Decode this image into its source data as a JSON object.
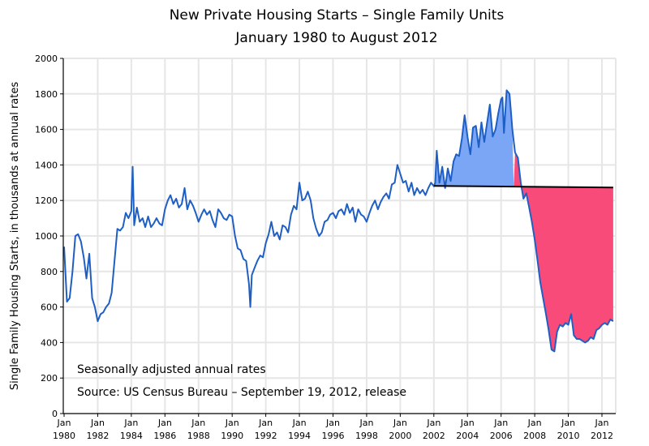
{
  "chart_data": {
    "type": "line",
    "title": "New Private Housing Starts – Single Family Units",
    "subtitle": "January 1980 to August 2012",
    "xlabel": "",
    "ylabel": "Single Family Housing Starts, in thousands at annual rates",
    "xlim": [
      1980.0,
      2012.67
    ],
    "ylim": [
      0,
      2000
    ],
    "grid": true,
    "y_ticks": [
      "0",
      "200",
      "400",
      "600",
      "800",
      "1000",
      "1200",
      "1400",
      "1600",
      "1800",
      "2000"
    ],
    "x_ticks": [
      {
        "top": "Jan",
        "bottom": "1980",
        "year": 1980
      },
      {
        "top": "Jan",
        "bottom": "1982",
        "year": 1982
      },
      {
        "top": "Jan",
        "bottom": "1984",
        "year": 1984
      },
      {
        "top": "Jan",
        "bottom": "1986",
        "year": 1986
      },
      {
        "top": "Jan",
        "bottom": "1988",
        "year": 1988
      },
      {
        "top": "Jan",
        "bottom": "1990",
        "year": 1990
      },
      {
        "top": "Jan",
        "bottom": "1992",
        "year": 1992
      },
      {
        "top": "Jan",
        "bottom": "1994",
        "year": 1994
      },
      {
        "top": "Jan",
        "bottom": "1996",
        "year": 1996
      },
      {
        "top": "Jan",
        "bottom": "1998",
        "year": 1998
      },
      {
        "top": "Jan",
        "bottom": "2000",
        "year": 2000
      },
      {
        "top": "Jan",
        "bottom": "2002",
        "year": 2002
      },
      {
        "top": "Jan",
        "bottom": "2004",
        "year": 2004
      },
      {
        "top": "Jan",
        "bottom": "2006",
        "year": 2006
      },
      {
        "top": "Jan",
        "bottom": "2008",
        "year": 2008
      },
      {
        "top": "Jan",
        "bottom": "2010",
        "year": 2010
      },
      {
        "top": "Jan",
        "bottom": "2012",
        "year": 2012
      }
    ],
    "series": [
      {
        "name": "Single Family Housing Starts",
        "color": "#1f5fc4",
        "x": [
          1980.0,
          1980.17,
          1980.33,
          1980.5,
          1980.67,
          1980.83,
          1981.0,
          1981.17,
          1981.33,
          1981.5,
          1981.67,
          1981.83,
          1982.0,
          1982.17,
          1982.33,
          1982.5,
          1982.67,
          1982.83,
          1983.0,
          1983.17,
          1983.33,
          1983.5,
          1983.67,
          1983.83,
          1984.0,
          1984.08,
          1984.17,
          1984.33,
          1984.5,
          1984.67,
          1984.83,
          1985.0,
          1985.17,
          1985.33,
          1985.5,
          1985.67,
          1985.83,
          1986.0,
          1986.17,
          1986.33,
          1986.5,
          1986.67,
          1986.83,
          1987.0,
          1987.17,
          1987.33,
          1987.5,
          1987.67,
          1987.83,
          1988.0,
          1988.17,
          1988.33,
          1988.5,
          1988.67,
          1988.83,
          1989.0,
          1989.17,
          1989.33,
          1989.5,
          1989.67,
          1989.83,
          1990.0,
          1990.17,
          1990.33,
          1990.5,
          1990.67,
          1990.83,
          1991.0,
          1991.08,
          1991.17,
          1991.33,
          1991.5,
          1991.67,
          1991.83,
          1992.0,
          1992.17,
          1992.33,
          1992.5,
          1992.67,
          1992.83,
          1993.0,
          1993.17,
          1993.33,
          1993.5,
          1993.67,
          1993.83,
          1994.0,
          1994.17,
          1994.33,
          1994.5,
          1994.67,
          1994.83,
          1995.0,
          1995.17,
          1995.33,
          1995.5,
          1995.67,
          1995.83,
          1996.0,
          1996.17,
          1996.33,
          1996.5,
          1996.67,
          1996.83,
          1997.0,
          1997.17,
          1997.33,
          1997.5,
          1997.67,
          1997.83,
          1998.0,
          1998.17,
          1998.33,
          1998.5,
          1998.67,
          1998.83,
          1999.0,
          1999.17,
          1999.33,
          1999.5,
          1999.67,
          1999.83,
          2000.0,
          2000.17,
          2000.33,
          2000.5,
          2000.67,
          2000.83,
          2001.0,
          2001.17,
          2001.33,
          2001.5,
          2001.67,
          2001.83,
          2002.0,
          2002.08,
          2002.17,
          2002.33,
          2002.5,
          2002.67,
          2002.83,
          2003.0,
          2003.17,
          2003.33,
          2003.5,
          2003.67,
          2003.83,
          2004.0,
          2004.17,
          2004.33,
          2004.5,
          2004.67,
          2004.83,
          2005.0,
          2005.17,
          2005.33,
          2005.5,
          2005.67,
          2005.83,
          2006.0,
          2006.08,
          2006.17,
          2006.33,
          2006.5,
          2006.67,
          2006.83,
          2007.0,
          2007.17,
          2007.33,
          2007.5,
          2007.67,
          2007.83,
          2008.0,
          2008.17,
          2008.33,
          2008.5,
          2008.67,
          2008.83,
          2009.0,
          2009.17,
          2009.33,
          2009.5,
          2009.67,
          2009.83,
          2010.0,
          2010.17,
          2010.33,
          2010.5,
          2010.67,
          2010.83,
          2011.0,
          2011.17,
          2011.33,
          2011.5,
          2011.67,
          2011.83,
          2012.0,
          2012.17,
          2012.33,
          2012.5,
          2012.67
        ],
        "y": [
          940,
          630,
          650,
          800,
          1000,
          1010,
          970,
          880,
          760,
          900,
          650,
          600,
          520,
          560,
          570,
          600,
          620,
          680,
          860,
          1040,
          1030,
          1050,
          1130,
          1100,
          1140,
          1390,
          1060,
          1160,
          1080,
          1100,
          1050,
          1110,
          1050,
          1070,
          1100,
          1070,
          1060,
          1150,
          1200,
          1230,
          1180,
          1210,
          1160,
          1180,
          1270,
          1150,
          1200,
          1170,
          1130,
          1080,
          1120,
          1150,
          1120,
          1140,
          1090,
          1050,
          1150,
          1130,
          1100,
          1090,
          1120,
          1110,
          1000,
          930,
          920,
          870,
          860,
          730,
          600,
          780,
          820,
          860,
          890,
          880,
          960,
          1010,
          1080,
          1000,
          1020,
          980,
          1060,
          1050,
          1020,
          1120,
          1170,
          1150,
          1300,
          1200,
          1210,
          1250,
          1200,
          1100,
          1040,
          1000,
          1020,
          1080,
          1090,
          1120,
          1130,
          1100,
          1140,
          1150,
          1120,
          1180,
          1130,
          1160,
          1080,
          1150,
          1120,
          1110,
          1080,
          1130,
          1170,
          1200,
          1150,
          1190,
          1220,
          1240,
          1210,
          1290,
          1300,
          1400,
          1350,
          1300,
          1310,
          1250,
          1300,
          1230,
          1270,
          1240,
          1260,
          1230,
          1270,
          1300,
          1280,
          1300,
          1480,
          1300,
          1390,
          1270,
          1380,
          1310,
          1420,
          1460,
          1450,
          1550,
          1680,
          1560,
          1460,
          1610,
          1620,
          1500,
          1640,
          1530,
          1640,
          1740,
          1560,
          1600,
          1690,
          1770,
          1780,
          1580,
          1820,
          1800,
          1600,
          1470,
          1440,
          1300,
          1210,
          1240,
          1160,
          1080,
          980,
          860,
          740,
          650,
          560,
          470,
          360,
          350,
          460,
          500,
          490,
          510,
          500,
          560,
          440,
          420,
          420,
          410,
          400,
          410,
          430,
          420,
          470,
          480,
          500,
          510,
          500,
          530,
          520
        ]
      }
    ],
    "reference_line": {
      "name": "Trend line",
      "color": "#000000",
      "start": [
        2002.0,
        1282
      ],
      "end": [
        2012.67,
        1273
      ]
    },
    "fills": [
      {
        "name": "Above trend",
        "color": "#7aa6f5",
        "from": 2002.0,
        "to": 2006.75
      },
      {
        "name": "Below trend",
        "color": "#f84b7a",
        "from": 2006.75,
        "to": 2012.67
      }
    ],
    "annotations": [
      "Seasonally adjusted annual rates",
      "Source:  US Census Bureau – September 19, 2012, release"
    ]
  }
}
